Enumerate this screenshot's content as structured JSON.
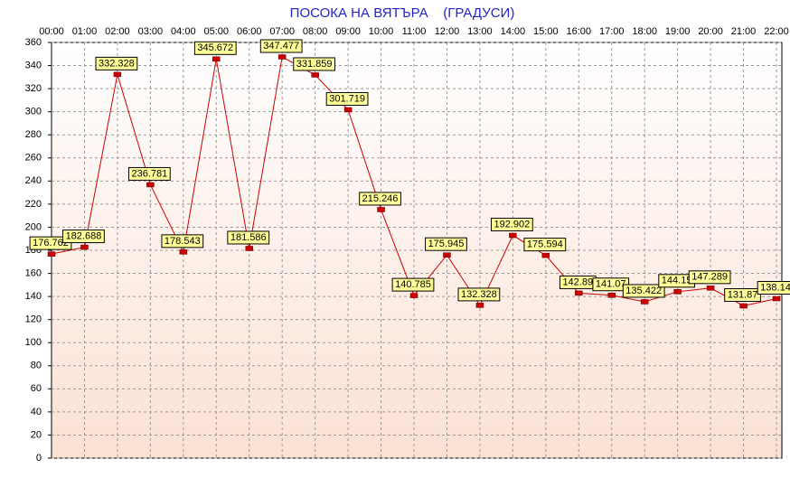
{
  "chart_data": {
    "type": "line",
    "title": "ПОСОКА НА ВЯТЪРА    (ГРАДУСИ)",
    "categories": [
      "00:00",
      "01:00",
      "02:00",
      "03:00",
      "04:00",
      "05:00",
      "06:00",
      "07:00",
      "08:00",
      "09:00",
      "10:00",
      "11:00",
      "12:00",
      "13:00",
      "14:00",
      "15:00",
      "16:00",
      "17:00",
      "18:00",
      "19:00",
      "20:00",
      "21:00",
      "22:00"
    ],
    "series": [
      {
        "name": "ПОСОКА",
        "color": "#cc0000",
        "values": [
          176.762,
          182.688,
          332.328,
          236.781,
          178.543,
          345.672,
          181.586,
          347.477,
          331.859,
          301.719,
          215.246,
          140.785,
          175.945,
          132.328,
          192.902,
          175.594,
          142.89,
          141.07,
          135.422,
          144.15,
          147.289,
          131.87,
          138.14
        ]
      }
    ],
    "ylim": [
      0,
      360
    ],
    "yticks": [
      0,
      20,
      40,
      60,
      80,
      100,
      120,
      140,
      160,
      180,
      200,
      220,
      240,
      260,
      280,
      300,
      320,
      340,
      360
    ],
    "grid": true
  }
}
